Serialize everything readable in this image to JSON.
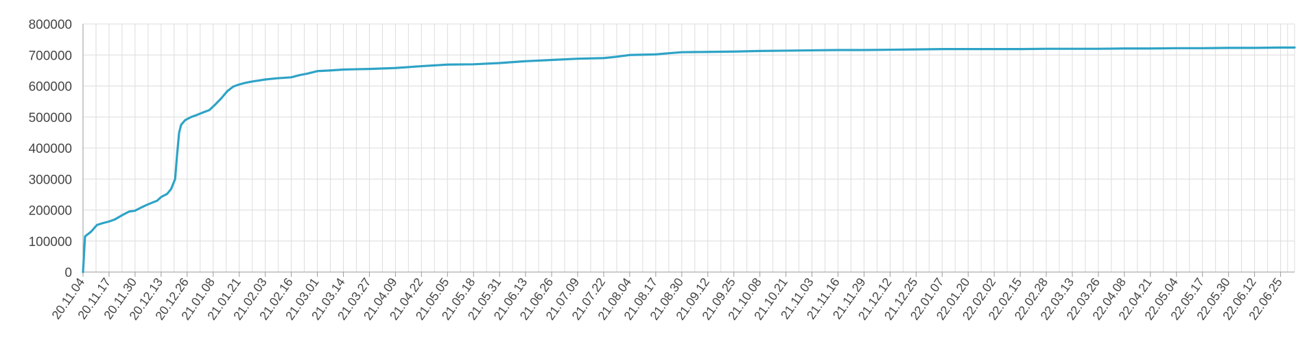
{
  "chart_data": {
    "type": "line",
    "title": "",
    "xlabel": "",
    "ylabel": "",
    "ylim": [
      0,
      800000
    ],
    "yticks": [
      0,
      100000,
      200000,
      300000,
      400000,
      500000,
      600000,
      700000,
      800000
    ],
    "grid": true,
    "legend": "none",
    "colors": {
      "series": "#2ea3c6",
      "grid": "#dcdcdc",
      "axis": "#999999",
      "text": "#444444"
    },
    "x_tick_labels": [
      "20.11.04",
      "20.11.17",
      "20.11.30",
      "20.12.13",
      "20.12.26",
      "21.01.08",
      "21.01.21",
      "21.02.03",
      "21.02.16",
      "21.03.01",
      "21.03.14",
      "21.03.27",
      "21.04.09",
      "21.04.22",
      "21.05.05",
      "21.05.18",
      "21.05.31",
      "21.06.13",
      "21.06.26",
      "21.07.09",
      "21.07.22",
      "21.08.04",
      "21.08.17",
      "21.08.30",
      "21.09.12",
      "21.09.25",
      "21.10.08",
      "21.10.21",
      "21.11.03",
      "21.11.16",
      "21.11.29",
      "21.12.12",
      "21.12.25",
      "22.01.07",
      "22.01.20",
      "22.02.02",
      "22.02.15",
      "22.02.28",
      "22.03.13",
      "22.03.26",
      "22.04.08",
      "22.04.21",
      "22.05.04",
      "22.05.17",
      "22.05.30",
      "22.06.12",
      "22.06.25"
    ],
    "series": [
      {
        "x": [
          "20.11.04",
          "20.11.05",
          "20.11.08",
          "20.11.11",
          "20.11.14",
          "20.11.17",
          "20.11.20",
          "20.11.24",
          "20.11.27",
          "20.11.30",
          "20.12.03",
          "20.12.06",
          "20.12.09",
          "20.12.11",
          "20.12.13",
          "20.12.16",
          "20.12.18",
          "20.12.20",
          "20.12.21",
          "20.12.22",
          "20.12.23",
          "20.12.25",
          "20.12.28",
          "20.12.31",
          "21.01.03",
          "21.01.06",
          "21.01.09",
          "21.01.12",
          "21.01.15",
          "21.01.18",
          "21.01.21",
          "21.01.24",
          "21.01.27",
          "21.01.30",
          "21.02.03",
          "21.02.09",
          "21.02.16",
          "21.02.20",
          "21.02.24",
          "21.03.01",
          "21.03.07",
          "21.03.14",
          "21.03.20",
          "21.03.27",
          "21.04.09",
          "21.04.22",
          "21.05.05",
          "21.05.18",
          "21.05.31",
          "21.06.13",
          "21.06.26",
          "21.07.09",
          "21.07.22",
          "21.07.28",
          "21.08.04",
          "21.08.17",
          "21.08.24",
          "21.08.30",
          "21.09.12",
          "21.09.25",
          "21.10.08",
          "21.10.21",
          "21.11.03",
          "21.11.16",
          "21.11.29",
          "21.12.12",
          "21.12.25",
          "22.01.07",
          "22.01.20",
          "22.02.02",
          "22.02.15",
          "22.02.28",
          "22.03.13",
          "22.03.26",
          "22.04.08",
          "22.04.21",
          "22.05.04",
          "22.05.17",
          "22.05.30",
          "22.06.12",
          "22.06.25",
          "22.07.02"
        ],
        "values": [
          0,
          115000,
          130000,
          152000,
          158000,
          163000,
          170000,
          185000,
          195000,
          198000,
          208000,
          217000,
          225000,
          230000,
          242000,
          252000,
          268000,
          300000,
          380000,
          450000,
          475000,
          490000,
          500000,
          507000,
          515000,
          522000,
          540000,
          560000,
          583000,
          598000,
          605000,
          610000,
          614000,
          617000,
          621000,
          625000,
          628000,
          635000,
          640000,
          648000,
          650000,
          653000,
          654000,
          655000,
          658000,
          664000,
          669000,
          670000,
          674000,
          680000,
          684000,
          688000,
          690000,
          694000,
          700000,
          702000,
          706000,
          709000,
          710000,
          711000,
          713000,
          714000,
          715000,
          716000,
          716000,
          717000,
          718000,
          719000,
          719000,
          719000,
          719000,
          720000,
          720000,
          720000,
          721000,
          721000,
          722000,
          722000,
          723000,
          723000,
          724000,
          724000
        ]
      }
    ]
  }
}
